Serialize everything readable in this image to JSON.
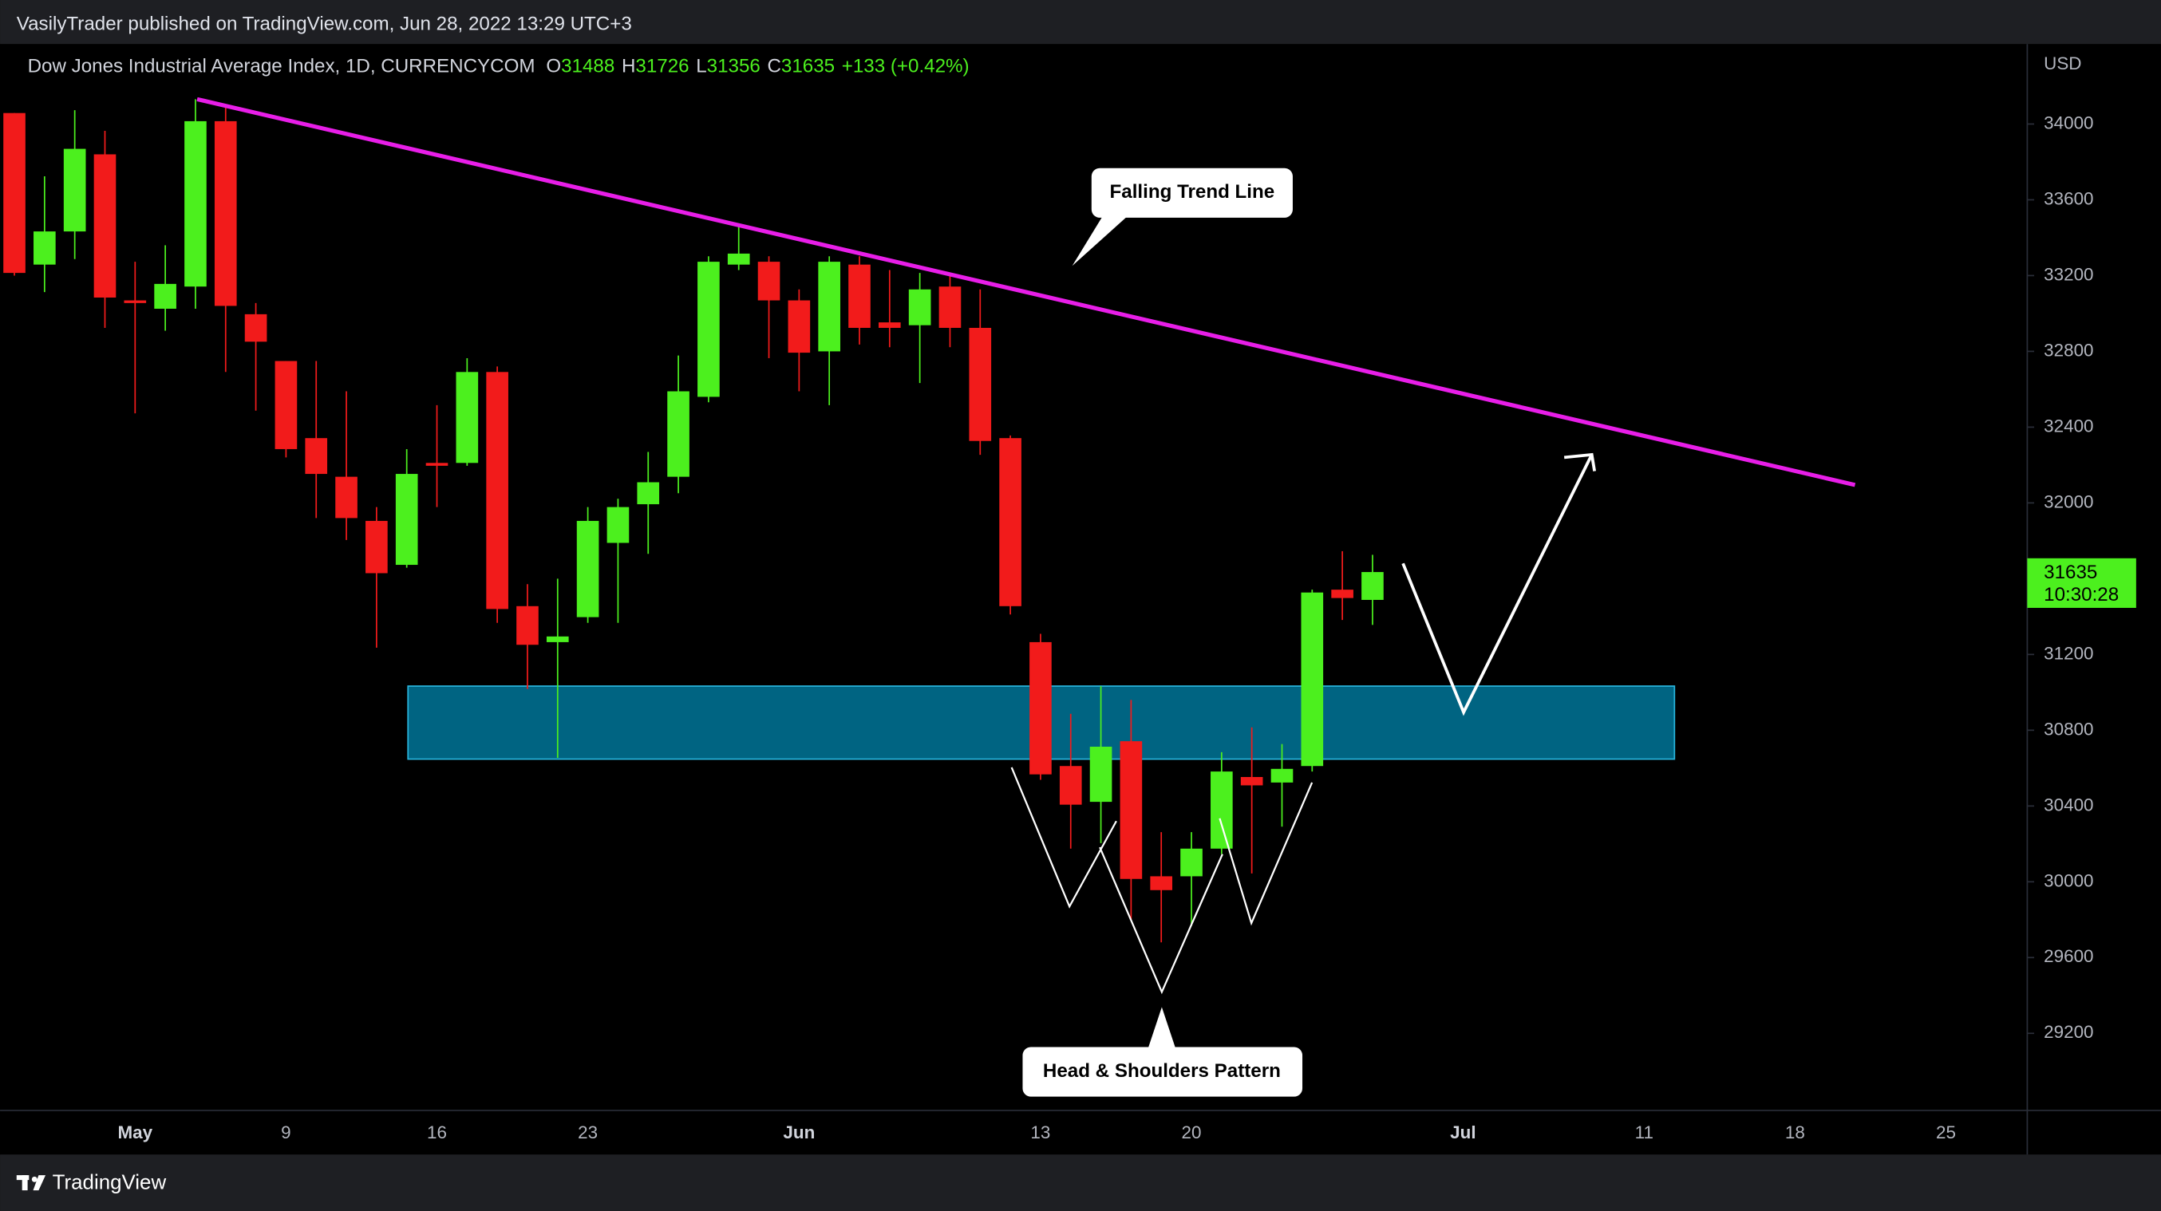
{
  "header": {
    "publisher": "VasilyTrader published on TradingView.com, Jun 28, 2022 13:29 UTC+3",
    "brand": "TradingView"
  },
  "chart_data": {
    "type": "candlestick",
    "title": "Dow Jones Industrial Average Index, 1D, CURRENCYCOM",
    "ohlc_letters": [
      "O",
      "H",
      "L",
      "C"
    ],
    "change_label": "+133 (+0.42%)",
    "currency": "USD",
    "countdown": "10:30:28",
    "annotations": [
      "Falling Trend Line",
      "Head & Shoulders Pattern"
    ],
    "up_color": "#4cf01e",
    "down_color": "#f21b1b",
    "ylim": [
      28793,
      34422
    ],
    "yticks": [
      29200,
      29600,
      30000,
      30400,
      30800,
      31200,
      31600,
      32000,
      32400,
      32800,
      33200,
      33600,
      34000
    ],
    "categories": [
      null,
      null,
      null,
      null,
      "May",
      null,
      null,
      null,
      null,
      "9",
      null,
      null,
      null,
      null,
      "16",
      null,
      null,
      null,
      null,
      "23",
      null,
      null,
      null,
      null,
      null,
      null,
      "Jun",
      null,
      null,
      null,
      null,
      null,
      null,
      null,
      "13",
      null,
      null,
      null,
      null,
      "20",
      null,
      null,
      null,
      null,
      null,
      null,
      null,
      null,
      "Jul",
      null,
      null,
      null,
      null,
      null,
      "11",
      null,
      null,
      null,
      null,
      "18",
      null,
      null,
      null,
      null,
      "25",
      null,
      null
    ],
    "open": [
      34058,
      33258,
      33433,
      33840,
      33069,
      33025,
      33142,
      34015,
      32996,
      32749,
      32342,
      32138,
      31905,
      31673,
      32211,
      32211,
      32691,
      31455,
      31265,
      31397,
      31789,
      31993,
      32138,
      32560,
      33258,
      33273,
      33069,
      32800,
      33258,
      32953,
      32938,
      33142,
      32924,
      32342,
      31265,
      30611,
      30422,
      30742,
      30029,
      30029,
      30175,
      30553,
      30524,
      30611,
      31542,
      31488,
      null,
      null,
      null,
      null,
      null,
      null,
      null,
      null,
      null,
      null,
      null,
      null,
      null,
      null,
      null,
      null,
      null,
      null,
      null,
      null,
      null
    ],
    "high": [
      34058,
      33724,
      34073,
      33964,
      33273,
      33360,
      34131,
      34087,
      33055,
      32749,
      32749,
      32589,
      31978,
      32284,
      32516,
      32764,
      32720,
      31571,
      31600,
      31978,
      32022,
      32269,
      32778,
      33302,
      33476,
      33302,
      33127,
      33302,
      33302,
      33229,
      33214,
      33200,
      33127,
      32356,
      31309,
      30887,
      31033,
      30960,
      30262,
      30262,
      30684,
      30815,
      30727,
      31542,
      31745,
      31726,
      null,
      null,
      null,
      null,
      null,
      null,
      null,
      null,
      null,
      null,
      null,
      null,
      null,
      null,
      null,
      null,
      null,
      null,
      null,
      null,
      null
    ],
    "low": [
      33200,
      33113,
      33287,
      32924,
      32473,
      32909,
      33025,
      32691,
      32487,
      32240,
      31920,
      31804,
      31236,
      31658,
      31978,
      32196,
      31367,
      31018,
      30654,
      31367,
      31367,
      31731,
      32051,
      32531,
      33229,
      32764,
      32589,
      32516,
      32836,
      32822,
      32633,
      32822,
      32254,
      31411,
      30538,
      30175,
      30204,
      29796,
      29680,
      29767,
      30146,
      30044,
      30291,
      30582,
      31382,
      31356,
      null,
      null,
      null,
      null,
      null,
      null,
      null,
      null,
      null,
      null,
      null,
      null,
      null,
      null,
      null,
      null,
      null,
      null,
      null,
      null,
      null
    ],
    "close": [
      33214,
      33433,
      33869,
      33084,
      33055,
      33156,
      34015,
      33040,
      32851,
      32284,
      32153,
      31920,
      31629,
      32153,
      32196,
      32691,
      31440,
      31251,
      31295,
      31905,
      31978,
      32109,
      32589,
      33273,
      33316,
      33069,
      32793,
      33273,
      32924,
      32924,
      33127,
      32924,
      32327,
      31455,
      30567,
      30407,
      30713,
      30015,
      29956,
      30175,
      30582,
      30509,
      30596,
      31527,
      31498,
      31635,
      null,
      null,
      null,
      null,
      null,
      null,
      null,
      null,
      null,
      null,
      null,
      null,
      null,
      null,
      null,
      null,
      null,
      null,
      null,
      null,
      null
    ]
  }
}
